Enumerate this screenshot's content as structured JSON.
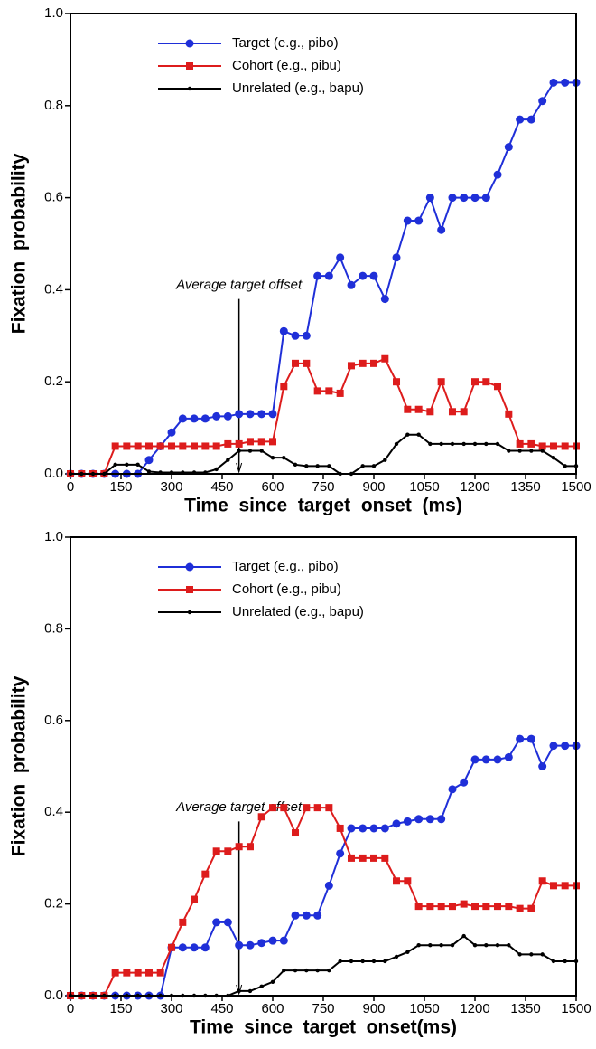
{
  "chart_data": [
    {
      "type": "line",
      "xlabel": "Time  since  target  onset  (ms)",
      "ylabel": "Fixation  probability",
      "x": [
        0,
        33,
        67,
        100,
        133,
        167,
        200,
        233,
        267,
        300,
        333,
        367,
        400,
        433,
        467,
        500,
        533,
        567,
        600,
        633,
        667,
        700,
        733,
        767,
        800,
        833,
        867,
        900,
        933,
        967,
        1000,
        1033,
        1067,
        1100,
        1133,
        1167,
        1200,
        1233,
        1267,
        1300,
        1333,
        1367,
        1400,
        1433,
        1467,
        1500
      ],
      "series": [
        {
          "name": "Target (e.g., pibo)",
          "color": "#1f2fd8",
          "marker": "circle",
          "values": [
            0,
            0,
            0,
            0,
            0,
            0,
            0,
            0.03,
            0.06,
            0.09,
            0.12,
            0.12,
            0.12,
            0.125,
            0.125,
            0.13,
            0.13,
            0.13,
            0.13,
            0.31,
            0.3,
            0.3,
            0.43,
            0.43,
            0.47,
            0.41,
            0.43,
            0.43,
            0.38,
            0.47,
            0.55,
            0.55,
            0.6,
            0.53,
            0.6,
            0.6,
            0.6,
            0.6,
            0.65,
            0.71,
            0.77,
            0.77,
            0.81,
            0.85,
            0.85,
            0.85
          ]
        },
        {
          "name": "Cohort (e.g., pibu)",
          "color": "#dd1c1c",
          "marker": "square",
          "values": [
            0,
            0,
            0,
            0,
            0.06,
            0.06,
            0.06,
            0.06,
            0.06,
            0.06,
            0.06,
            0.06,
            0.06,
            0.06,
            0.065,
            0.065,
            0.07,
            0.07,
            0.07,
            0.19,
            0.24,
            0.24,
            0.18,
            0.18,
            0.175,
            0.235,
            0.24,
            0.24,
            0.25,
            0.2,
            0.14,
            0.14,
            0.135,
            0.2,
            0.135,
            0.135,
            0.2,
            0.2,
            0.19,
            0.13,
            0.065,
            0.065,
            0.06,
            0.06,
            0.06,
            0.06
          ]
        },
        {
          "name": "Unrelated (e.g., bapu)",
          "color": "#000000",
          "marker": "dot",
          "values": [
            0,
            0,
            0,
            0,
            0.02,
            0.02,
            0.02,
            0.005,
            0.003,
            0.003,
            0.003,
            0.003,
            0.003,
            0.01,
            0.03,
            0.05,
            0.05,
            0.05,
            0.035,
            0.035,
            0.02,
            0.017,
            0.017,
            0.017,
            0,
            0,
            0.017,
            0.017,
            0.03,
            0.065,
            0.085,
            0.085,
            0.065,
            0.065,
            0.065,
            0.065,
            0.065,
            0.065,
            0.065,
            0.05,
            0.05,
            0.05,
            0.05,
            0.035,
            0.017,
            0.017
          ]
        }
      ],
      "annotation": {
        "text": "Average target offset",
        "x": 500
      },
      "xlim": [
        0,
        1500
      ],
      "xticks": [
        0,
        150,
        300,
        450,
        600,
        750,
        900,
        1050,
        1200,
        1350,
        1500
      ],
      "ylim": [
        0,
        1.0
      ],
      "yticks": [
        {
          "value": 0,
          "label": "0.0"
        },
        {
          "value": 0.2,
          "label": "0.2"
        },
        {
          "value": 0.4,
          "label": "0.4"
        },
        {
          "value": 0.6,
          "label": "0.6"
        },
        {
          "value": 0.8,
          "label": "0.8"
        },
        {
          "value": 1.0,
          "label": "1.0"
        }
      ],
      "legend": "upper center"
    },
    {
      "type": "line",
      "xlabel": "Time  since  target  onset(ms)",
      "ylabel": "Fixation  probability",
      "x": [
        0,
        33,
        67,
        100,
        133,
        167,
        200,
        233,
        267,
        300,
        333,
        367,
        400,
        433,
        467,
        500,
        533,
        567,
        600,
        633,
        667,
        700,
        733,
        767,
        800,
        833,
        867,
        900,
        933,
        967,
        1000,
        1033,
        1067,
        1100,
        1133,
        1167,
        1200,
        1233,
        1267,
        1300,
        1333,
        1367,
        1400,
        1433,
        1467,
        1500
      ],
      "series": [
        {
          "name": "Target (e.g., pibo)",
          "color": "#1f2fd8",
          "marker": "circle",
          "values": [
            0,
            0,
            0,
            0,
            0,
            0,
            0,
            0,
            0,
            0.105,
            0.105,
            0.105,
            0.105,
            0.16,
            0.16,
            0.11,
            0.11,
            0.115,
            0.12,
            0.12,
            0.175,
            0.175,
            0.175,
            0.24,
            0.31,
            0.365,
            0.365,
            0.365,
            0.365,
            0.375,
            0.38,
            0.385,
            0.385,
            0.385,
            0.45,
            0.465,
            0.515,
            0.515,
            0.515,
            0.52,
            0.56,
            0.56,
            0.5,
            0.545,
            0.545,
            0.545
          ]
        },
        {
          "name": "Cohort (e.g., pibu)",
          "color": "#dd1c1c",
          "marker": "square",
          "values": [
            0,
            0,
            0,
            0,
            0.05,
            0.05,
            0.05,
            0.05,
            0.05,
            0.105,
            0.16,
            0.21,
            0.265,
            0.315,
            0.315,
            0.325,
            0.325,
            0.39,
            0.41,
            0.41,
            0.355,
            0.41,
            0.41,
            0.41,
            0.365,
            0.3,
            0.3,
            0.3,
            0.3,
            0.25,
            0.25,
            0.195,
            0.195,
            0.195,
            0.195,
            0.2,
            0.195,
            0.195,
            0.195,
            0.195,
            0.19,
            0.19,
            0.25,
            0.24,
            0.24,
            0.24
          ]
        },
        {
          "name": "Unrelated (e.g., bapu)",
          "color": "#000000",
          "marker": "dot",
          "values": [
            0,
            0,
            0,
            0,
            0,
            0,
            0,
            0,
            0,
            0,
            0,
            0,
            0,
            0,
            0,
            0.01,
            0.01,
            0.02,
            0.03,
            0.055,
            0.055,
            0.055,
            0.055,
            0.055,
            0.075,
            0.075,
            0.075,
            0.075,
            0.075,
            0.085,
            0.095,
            0.11,
            0.11,
            0.11,
            0.11,
            0.13,
            0.11,
            0.11,
            0.11,
            0.11,
            0.09,
            0.09,
            0.09,
            0.075,
            0.075,
            0.075
          ]
        }
      ],
      "annotation": {
        "text": "Average target offset",
        "x": 500
      },
      "xlim": [
        0,
        1500
      ],
      "xticks": [
        0,
        150,
        300,
        450,
        600,
        750,
        900,
        1050,
        1200,
        1350,
        1500
      ],
      "ylim": [
        0,
        1.0
      ],
      "yticks": [
        {
          "value": 0,
          "label": "0.0"
        },
        {
          "value": 0.2,
          "label": "0.2"
        },
        {
          "value": 0.4,
          "label": "0.4"
        },
        {
          "value": 0.6,
          "label": "0.6"
        },
        {
          "value": 0.8,
          "label": "0.8"
        },
        {
          "value": 1.0,
          "label": "1.0"
        }
      ],
      "legend": "upper center"
    }
  ]
}
